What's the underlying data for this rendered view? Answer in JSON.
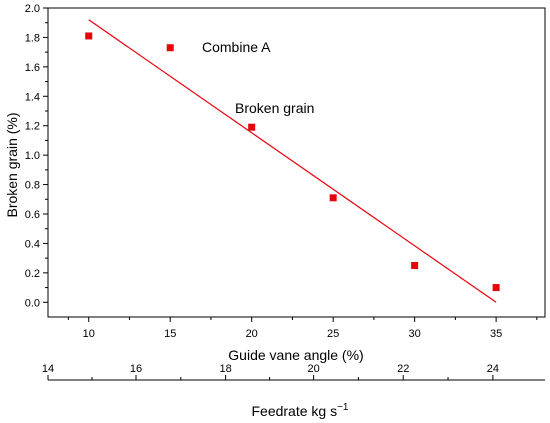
{
  "chart_data": {
    "type": "scatter",
    "annotations": [
      "Combine A",
      "Broken grain"
    ],
    "xlabel": "Guide vane angle (%)",
    "ylabel": "Broken grain (%)",
    "xlim": [
      7.5,
      38
    ],
    "ylim": [
      -0.1,
      2.0
    ],
    "x_ticks": [
      10,
      15,
      20,
      25,
      30,
      35
    ],
    "y_ticks": [
      0.0,
      0.2,
      0.4,
      0.6,
      0.8,
      1.0,
      1.2,
      1.4,
      1.6,
      1.8,
      2.0
    ],
    "y_tick_labels": [
      "0.0",
      "0.2",
      "0.4",
      "0.6",
      "0.8",
      "1.0",
      "1.2",
      "1.4",
      "1.6",
      "1.8",
      "2.0"
    ],
    "points": [
      {
        "x": 10,
        "y": 1.81
      },
      {
        "x": 15,
        "y": 1.73
      },
      {
        "x": 20,
        "y": 1.19
      },
      {
        "x": 25,
        "y": 0.71
      },
      {
        "x": 30,
        "y": 0.25
      },
      {
        "x": 35,
        "y": 0.1
      }
    ],
    "fit_line": {
      "x": [
        10,
        35
      ],
      "y": [
        1.92,
        0.0
      ]
    },
    "secondary_axis": {
      "label_main": "Feedrate kg s",
      "label_sup": "−1",
      "ticks": [
        14,
        16,
        18,
        20,
        22,
        24
      ],
      "tick_positions": [
        7.5,
        12.9,
        18.4,
        23.8,
        29.3,
        34.8
      ]
    },
    "colors": {
      "series": "#e8000b",
      "axis": "#000000"
    },
    "grid": false
  }
}
